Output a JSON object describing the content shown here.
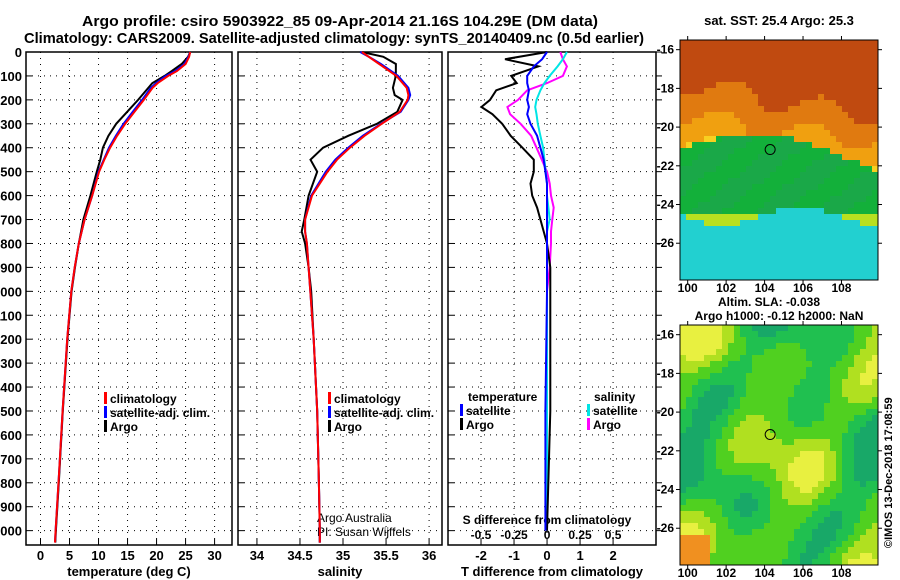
{
  "title_line1": "Argo profile: csiro 5903922_85 09-Apr-2014 21.16S 104.29E (DM data)",
  "title_line2": "Climatology: CARS2009. Satellite-adjusted climatology: synTS_20140409.nc (0.5d earlier)",
  "credit": "©IMOS 13-Dec-2018 17:08:59",
  "colors": {
    "climatology": "#ff0000",
    "satellite": "#0000ff",
    "argo": "#000000",
    "sat_s": "#00e5e5",
    "argo_s": "#ff00ff"
  },
  "chart_data": [
    {
      "type": "line",
      "name": "temperature",
      "xlabel": "temperature (deg C)",
      "ylabel": "depth",
      "xlim": [
        -2.5,
        33
      ],
      "ylim": [
        2060,
        0
      ],
      "xticks": [
        0,
        5,
        10,
        15,
        20,
        25,
        30
      ],
      "yticks": [
        0,
        100,
        200,
        300,
        400,
        500,
        600,
        700,
        800,
        900,
        1000,
        1100,
        1200,
        1300,
        1400,
        1500,
        1600,
        1700,
        1800,
        1900,
        2000
      ],
      "depth": [
        0,
        20,
        50,
        80,
        100,
        130,
        150,
        200,
        250,
        300,
        350,
        400,
        450,
        500,
        600,
        700,
        800,
        900,
        1000,
        1200,
        1500,
        1800,
        2000,
        2050
      ],
      "series": [
        {
          "name": "climatology",
          "key": "climatology",
          "values": [
            25.8,
            25.6,
            25,
            23.5,
            22,
            20.2,
            19.3,
            17.8,
            16.2,
            14.6,
            13.2,
            12,
            11,
            10.1,
            8.9,
            7.6,
            6.6,
            5.9,
            5.3,
            4.6,
            3.8,
            3.1,
            2.6,
            2.5
          ]
        },
        {
          "name": "satellite-adj. clim.",
          "key": "satellite",
          "values": [
            25.8,
            25.5,
            24.8,
            23.2,
            21.6,
            19.9,
            19,
            17.5,
            15.9,
            14.3,
            13,
            11.8,
            10.9,
            10,
            8.9,
            7.6,
            6.6,
            5.9,
            5.3,
            4.6,
            3.8,
            3.1,
            2.6,
            2.5
          ]
        },
        {
          "name": "Argo",
          "key": "argo",
          "values": [
            25.8,
            25.3,
            24.2,
            22.6,
            21.5,
            19.4,
            18.6,
            16.7,
            14.8,
            13,
            11.8,
            10.9,
            10.3,
            9.7,
            8.6,
            7.4,
            6.6,
            5.95,
            5.35,
            4.65,
            3.85,
            3.15,
            2.65,
            2.55
          ]
        }
      ]
    },
    {
      "type": "line",
      "name": "salinity",
      "xlabel": "salinity",
      "xlim": [
        33.78,
        36.15
      ],
      "ylim": [
        2060,
        0
      ],
      "xticks": [
        34,
        34.5,
        35,
        35.5,
        36
      ],
      "depth": [
        0,
        20,
        50,
        100,
        150,
        180,
        200,
        250,
        300,
        350,
        400,
        450,
        500,
        600,
        700,
        750,
        800,
        900,
        1000,
        1200,
        1500,
        1800,
        2000,
        2050
      ],
      "series": [
        {
          "name": "climatology",
          "key": "climatology",
          "values": [
            35.22,
            35.3,
            35.42,
            35.62,
            35.74,
            35.76,
            35.75,
            35.66,
            35.45,
            35.25,
            35.08,
            34.93,
            34.82,
            34.64,
            34.56,
            34.56,
            34.58,
            34.6,
            34.62,
            34.66,
            34.7,
            34.72,
            34.73,
            34.73
          ]
        },
        {
          "name": "satellite-adj. clim.",
          "key": "satellite",
          "values": [
            35.2,
            35.3,
            35.44,
            35.64,
            35.76,
            35.78,
            35.76,
            35.67,
            35.44,
            35.23,
            35.06,
            34.91,
            34.8,
            34.63,
            34.56,
            34.56,
            34.58,
            34.6,
            34.62,
            34.66,
            34.7,
            34.72,
            34.73,
            34.73
          ]
        },
        {
          "name": "Argo",
          "key": "argo",
          "values": [
            35.22,
            35.34,
            35.48,
            35.6,
            35.7,
            35.74,
            35.72,
            35.52,
            35.25,
            35.02,
            34.87,
            34.77,
            34.7,
            34.6,
            34.55,
            34.52,
            34.56,
            34.6,
            34.63,
            34.66,
            34.7,
            34.72,
            34.73,
            34.73
          ]
        }
      ],
      "annotation": [
        "Argo Australia",
        "PI: Susan Wijffels"
      ]
    },
    {
      "type": "line",
      "name": "difference",
      "xlabel": "T difference from climatology",
      "x2label": "S difference from climatology",
      "xlim": [
        -3,
        3.3
      ],
      "xticks": [
        -2,
        -1,
        0,
        1,
        2
      ],
      "x2ticks": [
        -0.5,
        -0.25,
        0,
        0.25,
        0.5
      ],
      "x2tick_labels": [
        "-0.5",
        "-0.25",
        "0",
        "0.25",
        "0.5"
      ],
      "s_to_t_scale": 4,
      "ylim": [
        2060,
        0
      ],
      "depth": [
        0,
        30,
        60,
        100,
        130,
        160,
        200,
        230,
        260,
        300,
        350,
        400,
        450,
        500,
        550,
        600,
        650,
        700,
        750,
        800,
        900,
        1000,
        1500,
        2000
      ],
      "series": [
        {
          "name": "temperature satellite",
          "key": "satellite",
          "values": [
            0,
            -0.15,
            -0.4,
            -0.6,
            -0.6,
            -0.55,
            -0.6,
            -0.55,
            -0.6,
            -0.5,
            -0.3,
            -0.2,
            -0.1,
            -0.05,
            0,
            0,
            0,
            0,
            0,
            0,
            0,
            0,
            -0.05,
            -0.05
          ]
        },
        {
          "name": "temperature Argo",
          "key": "argo",
          "values": [
            0,
            -1.4,
            -0.4,
            -1.1,
            -0.8,
            -1.4,
            -1.7,
            -2.1,
            -1.8,
            -1.4,
            -1.0,
            -0.6,
            -0.4,
            -0.4,
            -0.5,
            -0.45,
            -0.3,
            -0.2,
            -0.1,
            0,
            0.1,
            0.1,
            0.1,
            0
          ]
        },
        {
          "name": "salinity satellite",
          "key": "sat_s",
          "values": [
            0.15,
            0.12,
            0.08,
            0.02,
            -0.02,
            -0.05,
            -0.08,
            -0.09,
            -0.08,
            -0.07,
            -0.05,
            -0.03,
            -0.02,
            -0.01,
            0,
            0,
            0.01,
            0.02,
            0,
            0,
            0,
            0,
            0,
            0
          ]
        },
        {
          "name": "salinity Argo",
          "key": "argo_s",
          "values": [
            0.1,
            0.12,
            0.15,
            0.12,
            0.0,
            -0.15,
            -0.22,
            -0.3,
            -0.28,
            -0.2,
            -0.12,
            -0.08,
            -0.04,
            0,
            0.02,
            0.03,
            0.05,
            0.04,
            0.03,
            0.03,
            0.02,
            0,
            0,
            0
          ]
        }
      ],
      "legend": {
        "temperature_title": "temperature",
        "salinity_title": "salinity",
        "satellite": "satellite",
        "argo": "Argo"
      }
    },
    {
      "type": "heatmap",
      "name": "sst_map",
      "title": "sat. SST: 25.4 Argo: 25.3",
      "xlim": [
        99.6,
        109.9
      ],
      "ylim": [
        -27.9,
        -15.5
      ],
      "xticks": [
        100,
        102,
        104,
        106,
        108
      ],
      "yticks": [
        -16,
        -18,
        -20,
        -22,
        -24,
        -26
      ],
      "marker": {
        "lon": 104.29,
        "lat": -21.16
      }
    },
    {
      "type": "heatmap",
      "name": "sla_map",
      "title": "Altim. SLA: -0.038",
      "subtitle": "Argo h1000: -0.12 h2000: NaN",
      "xlim": [
        99.6,
        109.9
      ],
      "ylim": [
        -27.9,
        -15.5
      ],
      "xticks": [
        100,
        102,
        104,
        106,
        108
      ],
      "yticks": [
        -16,
        -18,
        -20,
        -22,
        -24,
        -26
      ],
      "marker": {
        "lon": 104.29,
        "lat": -21.16
      }
    }
  ]
}
